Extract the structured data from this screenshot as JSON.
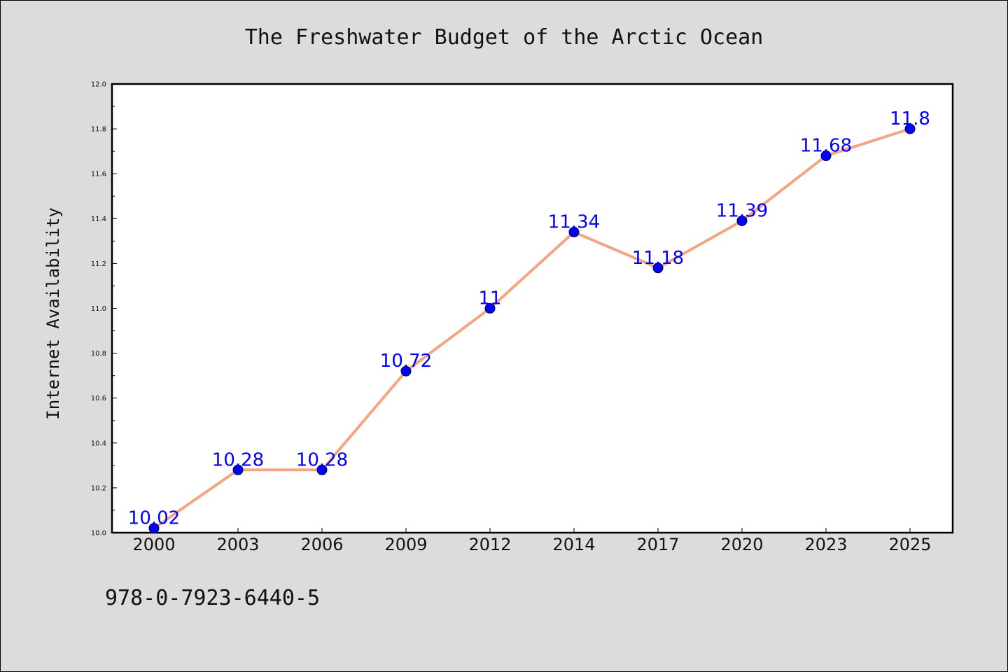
{
  "chart_data": {
    "type": "line",
    "title": "The Freshwater Budget of the Arctic Ocean",
    "xlabel": "",
    "ylabel": "Internet Availability",
    "categories": [
      "2000",
      "2003",
      "2006",
      "2009",
      "2012",
      "2014",
      "2017",
      "2020",
      "2023",
      "2025"
    ],
    "series": [
      {
        "values": [
          10.02,
          10.28,
          10.28,
          10.72,
          11,
          11.34,
          11.18,
          11.39,
          11.68,
          11.8
        ],
        "data_labels": [
          "10.02",
          "10.28",
          "10.28",
          "10.72",
          "11",
          "11.34",
          "11.18",
          "11.39",
          "11.68",
          "11.8"
        ]
      }
    ],
    "ylim": [
      10.0,
      12.0
    ],
    "yticks": [
      "10.0",
      "10.2",
      "10.4",
      "10.6",
      "10.8",
      "11.0",
      "11.2",
      "11.4",
      "11.6",
      "11.8",
      "12.0"
    ],
    "grid": false,
    "colors": {
      "line": "#f4a582",
      "marker": "#0000ff",
      "data_label": "#0000ff"
    }
  },
  "footer": {
    "isbn": "978-0-7923-6440-5"
  }
}
